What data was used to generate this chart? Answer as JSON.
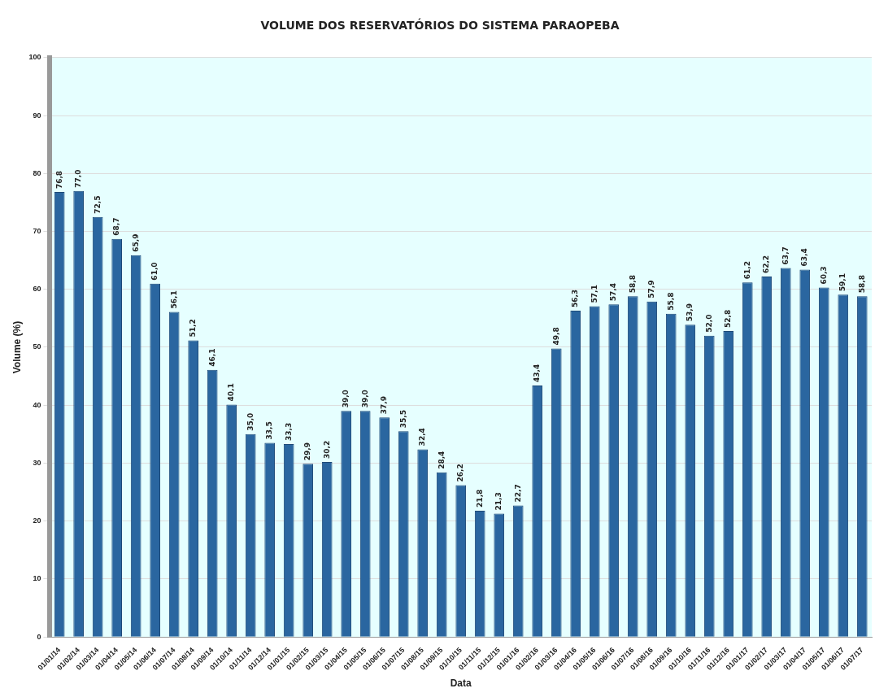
{
  "chart_data": {
    "type": "bar",
    "title": "VOLUME DOS RESERVATÓRIOS DO SISTEMA PARAOPEBA",
    "xlabel": "Data",
    "ylabel": "Volume (%)",
    "categories": [
      "01/01/14",
      "01/02/14",
      "01/03/14",
      "01/04/14",
      "01/05/14",
      "01/06/14",
      "01/07/14",
      "01/08/14",
      "01/09/14",
      "01/10/14",
      "01/11/14",
      "01/12/14",
      "01/01/15",
      "01/02/15",
      "01/03/15",
      "01/04/15",
      "01/05/15",
      "01/06/15",
      "01/07/15",
      "01/08/15",
      "01/09/15",
      "01/10/15",
      "01/11/15",
      "01/12/15",
      "01/01/16",
      "01/02/16",
      "01/03/16",
      "01/04/16",
      "01/05/16",
      "01/06/16",
      "01/07/16",
      "01/08/16",
      "01/09/16",
      "01/10/16",
      "01/11/16",
      "01/12/16",
      "01/01/17",
      "01/02/17",
      "01/03/17",
      "01/04/17",
      "01/05/17",
      "01/06/17",
      "01/07/17"
    ],
    "values": [
      76.8,
      77.0,
      72.5,
      68.7,
      65.9,
      61.0,
      56.1,
      51.2,
      46.1,
      40.1,
      35.0,
      33.5,
      33.3,
      29.9,
      30.2,
      39.0,
      39.0,
      37.9,
      35.5,
      32.4,
      28.4,
      26.2,
      21.8,
      21.3,
      22.7,
      43.4,
      49.8,
      56.3,
      57.1,
      57.4,
      58.8,
      57.9,
      55.8,
      53.9,
      52.0,
      52.8,
      61.2,
      62.2,
      63.7,
      63.4,
      60.3,
      59.1,
      58.8
    ],
    "value_labels": [
      "76,8",
      "77,0",
      "72,5",
      "68,7",
      "65,9",
      "61,0",
      "56,1",
      "51,2",
      "46,1",
      "40,1",
      "35,0",
      "33,5",
      "33,3",
      "29,9",
      "30,2",
      "39,0",
      "39,0",
      "37,9",
      "35,5",
      "32,4",
      "28,4",
      "26,2",
      "21,8",
      "21,3",
      "22,7",
      "43,4",
      "49,8",
      "56,3",
      "57,1",
      "57,4",
      "58,8",
      "57,9",
      "55,8",
      "53,9",
      "52,0",
      "52,8",
      "61,2",
      "62,2",
      "63,7",
      "63,4",
      "60,3",
      "59,1",
      "58,8"
    ],
    "color": "#2a66a0",
    "ylim": [
      0,
      100
    ],
    "yticks": [
      0,
      10,
      20,
      30,
      40,
      50,
      60,
      70,
      80,
      90,
      100
    ],
    "grid": "y",
    "legend": false
  }
}
